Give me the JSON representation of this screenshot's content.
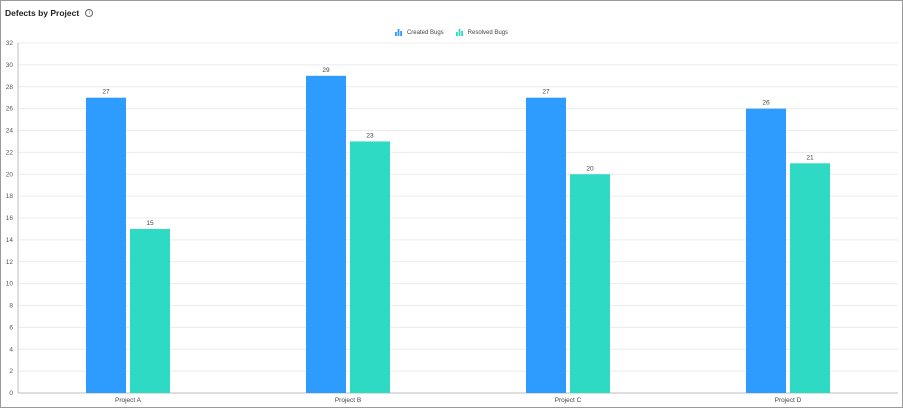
{
  "header": {
    "title": "Defects by Project"
  },
  "colors": {
    "created": "#2e9bff",
    "resolved": "#2fdac5",
    "grid": "#ececec",
    "axis": "#bdbdbd"
  },
  "chart_data": {
    "type": "bar",
    "title": "Defects by Project",
    "xlabel": "",
    "ylabel": "",
    "categories": [
      "Project A",
      "Project B",
      "Project C",
      "Project D"
    ],
    "series": [
      {
        "name": "Created Bugs",
        "values": [
          27,
          29,
          27,
          26
        ]
      },
      {
        "name": "Resolved Bugs",
        "values": [
          15,
          23,
          20,
          21
        ]
      }
    ],
    "ylim": [
      0,
      32
    ],
    "yticks": [
      0,
      2,
      4,
      6,
      8,
      10,
      12,
      14,
      16,
      18,
      20,
      22,
      24,
      26,
      28,
      30,
      32
    ],
    "grid": true,
    "legend": "top-center",
    "data_labels": true
  }
}
